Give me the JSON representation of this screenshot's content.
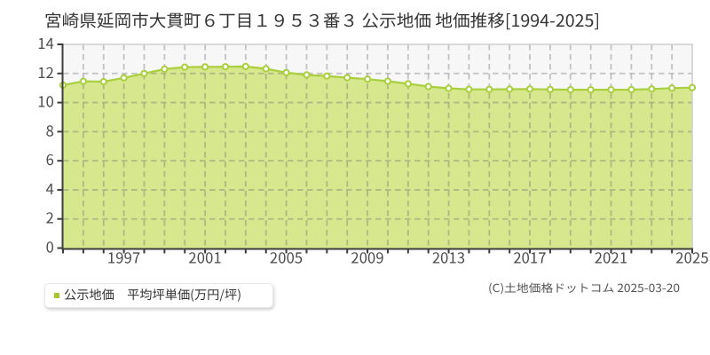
{
  "page": {
    "background": "#ffffff"
  },
  "title": {
    "text": "宮崎県延岡市大貫町６丁目１９５３番３ 公示地価 地価推移[1994-2025]"
  },
  "legend": {
    "label": "公示地価　平均坪単価(万円/坪)",
    "marker_color": "#a3c92a"
  },
  "footer": {
    "copyright": "(C)土地価格ドットコム 2025-03-20"
  },
  "chart_data": {
    "type": "area",
    "title": "宮崎県延岡市大貫町６丁目１９５３番３ 公示地価 地価推移[1994-2025]",
    "xlabel": "",
    "ylabel": "",
    "ylim": [
      0,
      14
    ],
    "y_ticks": [
      0,
      2,
      4,
      6,
      8,
      10,
      12,
      14
    ],
    "x_tick_labels": [
      1997,
      2001,
      2005,
      2009,
      2013,
      2017,
      2021,
      2025
    ],
    "grid": true,
    "legend_position": "bottom-left",
    "x": [
      1994,
      1995,
      1996,
      1997,
      1998,
      1999,
      2000,
      2001,
      2002,
      2003,
      2004,
      2005,
      2006,
      2007,
      2008,
      2009,
      2010,
      2011,
      2012,
      2013,
      2014,
      2015,
      2016,
      2017,
      2018,
      2019,
      2020,
      2021,
      2022,
      2023,
      2024,
      2025
    ],
    "series": [
      {
        "name": "公示地価　平均坪単価(万円/坪)",
        "values": [
          11.2,
          11.46,
          11.44,
          11.7,
          12.0,
          12.3,
          12.44,
          12.45,
          12.46,
          12.48,
          12.32,
          12.06,
          11.9,
          11.82,
          11.71,
          11.61,
          11.47,
          11.29,
          11.1,
          10.98,
          10.91,
          10.91,
          10.92,
          10.93,
          10.9,
          10.88,
          10.88,
          10.88,
          10.89,
          10.93,
          10.99,
          11.03
        ]
      }
    ],
    "colors": {
      "fill": "#d7e78e",
      "line": "#a9cf3d",
      "marker_fill": "#ffffff",
      "marker_stroke": "#a9cf3d",
      "plot_bg": "#f7f7f7",
      "axis": "#3c3c3c",
      "grid": "rgba(108,108,108,0.38)",
      "border": "#cfcfcf",
      "tick_label_color": "#4a4a4a"
    }
  }
}
